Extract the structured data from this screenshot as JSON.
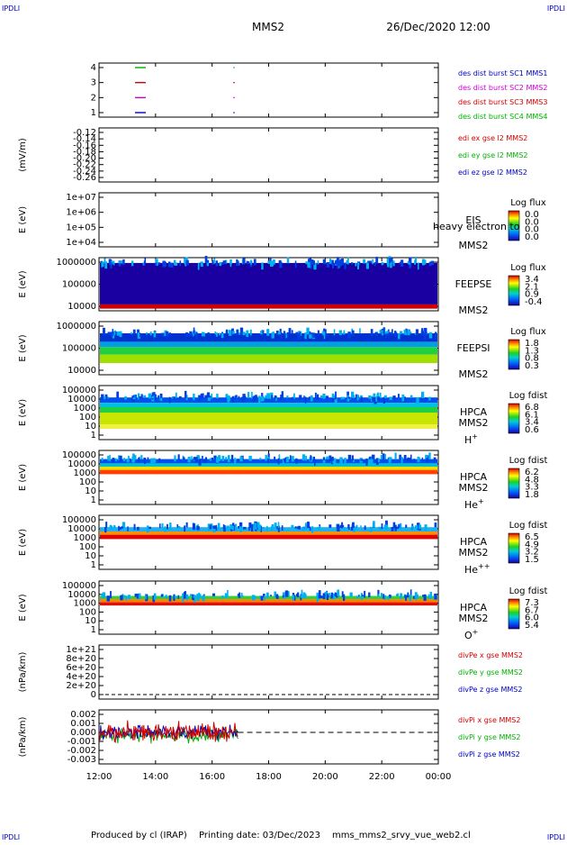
{
  "corner_label": "IPDLI",
  "header": {
    "mission": "MMS2",
    "datetime": "26/Dec/2020 12:00"
  },
  "footer": {
    "produced_by": "Produced by cl (IRAP)",
    "printing_date": "Printing date: 03/Dec/2023",
    "script_name": "mms_mms2_srvy_vue_web2.cl"
  },
  "time_axis": {
    "ticks": [
      "12:00",
      "14:00",
      "16:00",
      "18:00",
      "20:00",
      "22:00",
      "00:00"
    ]
  },
  "chart_data": [
    {
      "type": "line",
      "name": "des dist burst",
      "yticks": [
        "4",
        "3",
        "2",
        "1"
      ],
      "legend": [
        {
          "text": "des dist burst SC1 MMS1",
          "color": "#0000c0"
        },
        {
          "text": "des dist burst SC2 MMS2",
          "color": "#d000d0"
        },
        {
          "text": "des dist burst SC3 MMS3",
          "color": "#d00000"
        },
        {
          "text": "des dist burst SC4 MMS4",
          "color": "#00b000"
        }
      ]
    },
    {
      "type": "line",
      "name": "edi e gse l2",
      "ylabel": "(mV/m)",
      "yticks": [
        "-0.12",
        "-0.14",
        "-0.16",
        "-0.18",
        "-0.20",
        "-0.22",
        "-0.24",
        "-0.26"
      ],
      "legend": [
        {
          "text": "edi ex gse l2 MMS2",
          "color": "#d00000"
        },
        {
          "text": "edi ey gse l2 MMS2",
          "color": "#00b000"
        },
        {
          "text": "edi ez gse l2 MMS2",
          "color": "#0000c0"
        }
      ]
    },
    {
      "type": "heatmap",
      "ylabel": "E (eV)",
      "yticks": [
        "1e+07",
        "1e+06",
        "1e+05",
        "1e+04"
      ],
      "instrument": "EIS",
      "overlay": "heavy electron to",
      "sc": "MMS2",
      "colorbar_title": "Log flux",
      "colorbar_ticks": [
        "0.0",
        "0.0",
        "0.0",
        "0.0"
      ]
    },
    {
      "type": "heatmap",
      "ylabel": "E (eV)",
      "yticks": [
        "1000000",
        "100000",
        "10000"
      ],
      "instrument": "FEEPSE",
      "sc": "MMS2",
      "colorbar_title": "Log flux",
      "colorbar_ticks": [
        "3.4",
        "2.1",
        "0.9",
        "-0.4"
      ]
    },
    {
      "type": "heatmap",
      "ylabel": "E (eV)",
      "yticks": [
        "1000000",
        "100000",
        "10000"
      ],
      "instrument": "FEEPSI",
      "sc": "MMS2",
      "colorbar_title": "Log flux",
      "colorbar_ticks": [
        "1.8",
        "1.3",
        "0.8",
        "0.3"
      ]
    },
    {
      "type": "heatmap",
      "ylabel": "E (eV)",
      "yticks": [
        "100000",
        "10000",
        "1000",
        "100",
        "10",
        "1"
      ],
      "instrument": "HPCA",
      "sc": "MMS2",
      "species": "H",
      "species_sup": "+",
      "colorbar_title": "Log fdist",
      "colorbar_ticks": [
        "6.8",
        "6.1",
        "3.4",
        "0.6"
      ]
    },
    {
      "type": "heatmap",
      "ylabel": "E (eV)",
      "yticks": [
        "100000",
        "10000",
        "1000",
        "100",
        "10",
        "1"
      ],
      "instrument": "HPCA",
      "sc": "MMS2",
      "species": "He",
      "species_sup": "+",
      "colorbar_title": "Log fdist",
      "colorbar_ticks": [
        "6.2",
        "4.8",
        "3.3",
        "1.8"
      ]
    },
    {
      "type": "heatmap",
      "ylabel": "E (eV)",
      "yticks": [
        "100000",
        "10000",
        "1000",
        "100",
        "10",
        "1"
      ],
      "instrument": "HPCA",
      "sc": "MMS2",
      "species": "He",
      "species_sup": "++",
      "colorbar_title": "Log fdist",
      "colorbar_ticks": [
        "6.5",
        "4.9",
        "3.2",
        "1.5"
      ]
    },
    {
      "type": "heatmap",
      "ylabel": "E (eV)",
      "yticks": [
        "100000",
        "10000",
        "1000",
        "100",
        "10",
        "1"
      ],
      "instrument": "HPCA",
      "sc": "MMS2",
      "species": "O",
      "species_sup": "+",
      "colorbar_title": "Log fdist",
      "colorbar_ticks": [
        "7.3",
        "6.7",
        "6.0",
        "5.4"
      ]
    },
    {
      "type": "line",
      "name": "divPe",
      "ylabel": "(nPa/km)",
      "yticks": [
        "1e+21",
        "8e+20",
        "6e+20",
        "4e+20",
        "2e+20",
        "0"
      ],
      "legend": [
        {
          "text": "divPe x gse MMS2",
          "color": "#d00000"
        },
        {
          "text": "divPe y gse MMS2",
          "color": "#00b000"
        },
        {
          "text": "divPe z gse MMS2",
          "color": "#0000c0"
        }
      ]
    },
    {
      "type": "line",
      "name": "divPi",
      "ylabel": "(nPa/km)",
      "yticks": [
        "0.002",
        "0.001",
        "0.000",
        "-0.001",
        "-0.002",
        "-0.003"
      ],
      "ylim": [
        -0.003,
        0.002
      ],
      "data_end_time": "16:55",
      "legend": [
        {
          "text": "divPi x gse MMS2",
          "color": "#d00000"
        },
        {
          "text": "divPi y gse MMS2",
          "color": "#00b000"
        },
        {
          "text": "divPi z gse MMS2",
          "color": "#0000c0"
        }
      ]
    }
  ]
}
